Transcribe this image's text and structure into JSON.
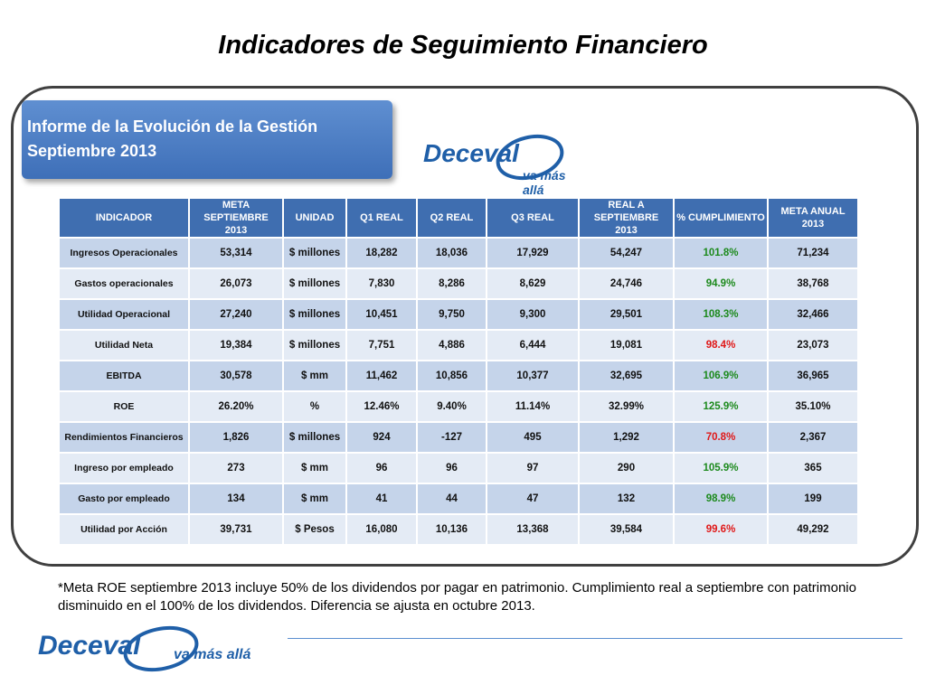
{
  "page": {
    "title": "Indicadores de Seguimiento Financiero",
    "report_title": "Informe de la Evolución de la Gestión Septiembre 2013",
    "logo_word": "Deceval",
    "logo_tagline": "va más allá",
    "footnote": "*Meta ROE septiembre 2013 incluye 50% de los dividendos por pagar en patrimonio. Cumplimiento real a septiembre con patrimonio disminuido en el 100% de los dividendos. Diferencia se ajusta en octubre 2013."
  },
  "colors": {
    "brand": "#1f5fa8",
    "header": "#3f6eb0",
    "good": "#1d8a1d",
    "bad": "#e01818"
  },
  "table": {
    "headers": [
      "INDICADOR",
      "META SEPTIEMBRE 2013",
      "UNIDAD",
      "Q1 REAL",
      "Q2 REAL",
      "Q3 REAL",
      "REAL A SEPTIEMBRE 2013",
      "% CUMPLIMIENTO",
      "META ANUAL 2013"
    ],
    "rows": [
      {
        "cells": [
          "Ingresos Operacionales",
          "53,314",
          "$ millones",
          "18,282",
          "18,036",
          "17,929",
          "54,247",
          "101.8%",
          "71,234"
        ],
        "status": "green"
      },
      {
        "cells": [
          "Gastos operacionales",
          "26,073",
          "$ millones",
          "7,830",
          "8,286",
          "8,629",
          "24,746",
          "94.9%",
          "38,768"
        ],
        "status": "green"
      },
      {
        "cells": [
          "Utilidad Operacional",
          "27,240",
          "$ millones",
          "10,451",
          "9,750",
          "9,300",
          "29,501",
          "108.3%",
          "32,466"
        ],
        "status": "green"
      },
      {
        "cells": [
          "Utilidad Neta",
          "19,384",
          "$ millones",
          "7,751",
          "4,886",
          "6,444",
          "19,081",
          "98.4%",
          "23,073"
        ],
        "status": "red"
      },
      {
        "cells": [
          "EBITDA",
          "30,578",
          "$ mm",
          "11,462",
          "10,856",
          "10,377",
          "32,695",
          "106.9%",
          "36,965"
        ],
        "status": "green"
      },
      {
        "cells": [
          "ROE",
          "26.20%",
          "%",
          "12.46%",
          "9.40%",
          "11.14%",
          "32.99%",
          "125.9%",
          "35.10%"
        ],
        "status": "green"
      },
      {
        "cells": [
          "Rendimientos Financieros",
          "1,826",
          "$ millones",
          "924",
          "-127",
          "495",
          "1,292",
          "70.8%",
          "2,367"
        ],
        "status": "red"
      },
      {
        "cells": [
          "Ingreso por empleado",
          "273",
          "$ mm",
          "96",
          "96",
          "97",
          "290",
          "105.9%",
          "365"
        ],
        "status": "green"
      },
      {
        "cells": [
          "Gasto por empleado",
          "134",
          "$ mm",
          "41",
          "44",
          "47",
          "132",
          "98.9%",
          "199"
        ],
        "status": "green"
      },
      {
        "cells": [
          "Utilidad por Acción",
          "39,731",
          "$ Pesos",
          "16,080",
          "10,136",
          "13,368",
          "39,584",
          "99.6%",
          "49,292"
        ],
        "status": "red"
      }
    ]
  }
}
